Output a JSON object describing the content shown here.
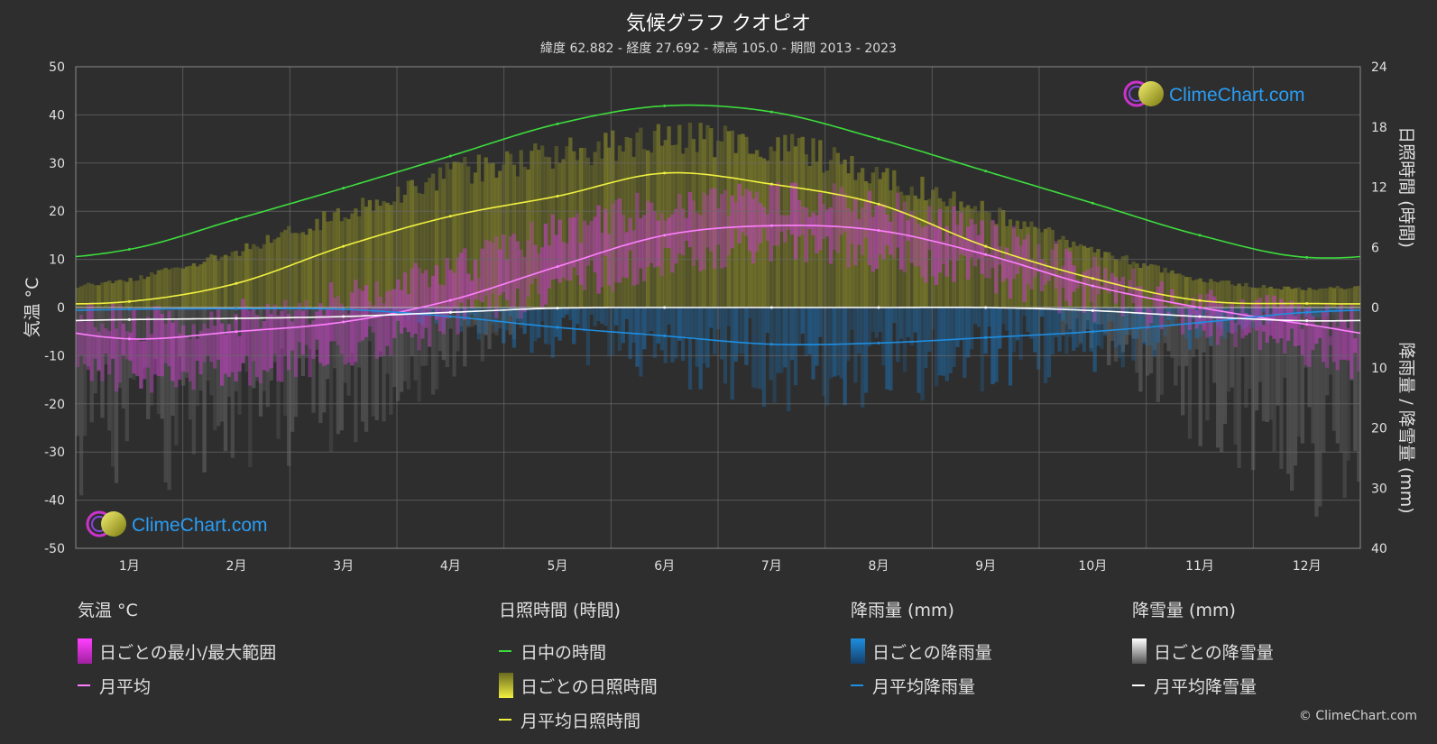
{
  "title": "気候グラフ クオピオ",
  "subtitle": "緯度 62.882 - 経度 27.692 - 標高 105.0 - 期間 2013 - 2023",
  "logo_text": "ClimeChart.com",
  "copyright": "© ClimeChart.com",
  "colors": {
    "background": "#2e2e2e",
    "daylight": "#3ddc3d",
    "sunshine_line": "#f0f040",
    "temp_avg": "#ff80ff",
    "rain_avg": "#1e8ee0",
    "snow_avg": "#ffffff",
    "logo_text": "#2a9df4"
  },
  "legend": {
    "temperature": {
      "title": "気温 °C",
      "range_label": "日ごとの最小/最大範囲",
      "avg_label": "月平均"
    },
    "sunshine": {
      "title": "日照時間 (時間)",
      "daylight_label": "日中の時間",
      "daily_label": "日ごとの日照時間",
      "avg_label": "月平均日照時間"
    },
    "rain": {
      "title": "降雨量 (mm)",
      "daily_label": "日ごとの降雨量",
      "avg_label": "月平均降雨量"
    },
    "snow": {
      "title": "降雪量 (mm)",
      "daily_label": "日ごとの降雪量",
      "avg_label": "月平均降雪量"
    }
  },
  "chart_data": {
    "type": "line",
    "categories": [
      "1月",
      "2月",
      "3月",
      "4月",
      "5月",
      "6月",
      "7月",
      "8月",
      "9月",
      "10月",
      "11月",
      "12月"
    ],
    "y_left": {
      "label": "気温 °C",
      "range": [
        -50,
        50
      ],
      "ticks": [
        50,
        40,
        30,
        20,
        10,
        0,
        -10,
        -20,
        -30,
        -40,
        -50
      ]
    },
    "y_right_top": {
      "label": "日照時間 (時間)",
      "range": [
        0,
        24
      ],
      "ticks": [
        24,
        18,
        12,
        6,
        0
      ]
    },
    "y_right_bottom": {
      "label": "降雨量 / 降雪量 (mm)",
      "range": [
        0,
        40
      ],
      "ticks": [
        10,
        20,
        30,
        40
      ]
    },
    "grid": true,
    "series": [
      {
        "name": "日中の時間",
        "axis": "sunshine",
        "values": [
          5.8,
          8.8,
          11.9,
          15.1,
          18.3,
          20.1,
          19.5,
          16.8,
          13.6,
          10.4,
          7.2,
          5.0
        ]
      },
      {
        "name": "月平均日照時間",
        "axis": "sunshine",
        "values": [
          0.6,
          2.4,
          6.1,
          9.1,
          11.1,
          13.4,
          12.3,
          10.3,
          6.1,
          2.9,
          0.7,
          0.4
        ]
      },
      {
        "name": "月平均",
        "axis": "temperature",
        "values": [
          -6.5,
          -5.0,
          -3.0,
          1.5,
          8.5,
          15.0,
          17.0,
          16.0,
          11.0,
          4.5,
          0.0,
          -3.5
        ]
      },
      {
        "name": "月平均降雨量",
        "axis": "precipitation",
        "values": [
          0.3,
          0.2,
          0.3,
          1.5,
          3.3,
          4.7,
          6.1,
          5.9,
          5.0,
          4.0,
          2.5,
          0.8
        ]
      },
      {
        "name": "月平均降雪量",
        "axis": "precipitation",
        "values": [
          2.0,
          1.8,
          1.5,
          0.8,
          0.1,
          0.0,
          0.0,
          0.0,
          0.0,
          0.5,
          1.5,
          2.2
        ]
      }
    ],
    "daily_ranges_monthly_approx": {
      "temp_min": [
        -14,
        -13,
        -9,
        -3,
        4,
        10,
        13,
        11,
        6,
        1,
        -3,
        -9
      ],
      "temp_max": [
        -3,
        -2,
        2,
        8,
        16,
        21,
        23,
        21,
        15,
        7,
        1,
        -2
      ],
      "sunshine_daily_max": [
        3,
        6,
        10,
        14,
        16,
        17.5,
        17,
        14,
        10,
        6,
        3,
        2
      ]
    }
  }
}
